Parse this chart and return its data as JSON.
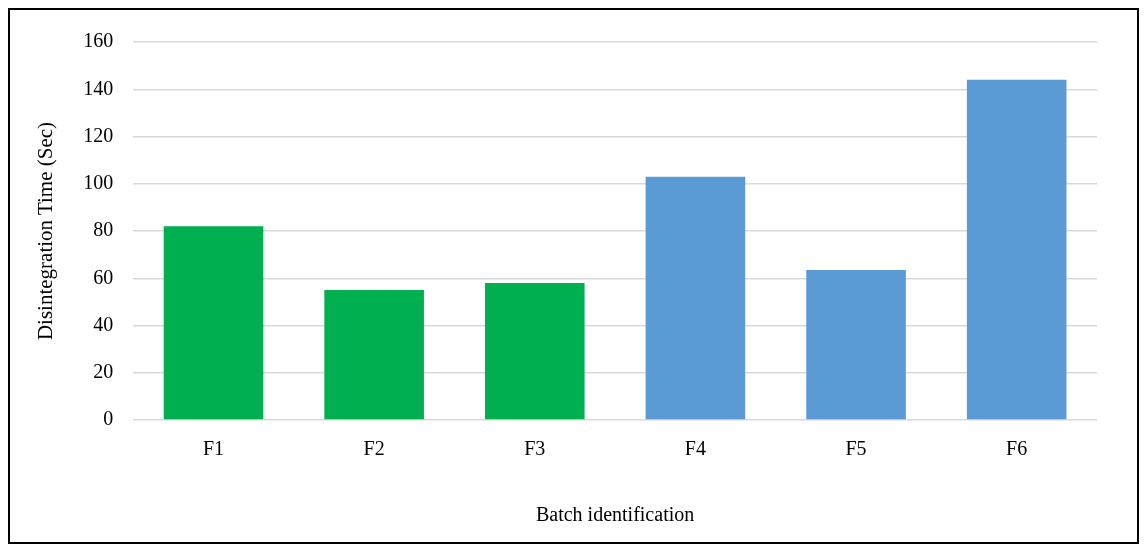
{
  "chart_data": {
    "type": "bar",
    "xlabel": "Batch identification",
    "ylabel": "Disintegration Time (Sec)",
    "categories": [
      "F1",
      "F2",
      "F3",
      "F4",
      "F5",
      "F6"
    ],
    "values": [
      82,
      55,
      58,
      103,
      63.5,
      144
    ],
    "colors": [
      "#00b050",
      "#00b050",
      "#00b050",
      "#5b9bd5",
      "#5b9bd5",
      "#5b9bd5"
    ],
    "ylim": [
      0,
      160
    ],
    "yticks": [
      0,
      20,
      40,
      60,
      80,
      100,
      120,
      140,
      160
    ],
    "grid": "y"
  }
}
